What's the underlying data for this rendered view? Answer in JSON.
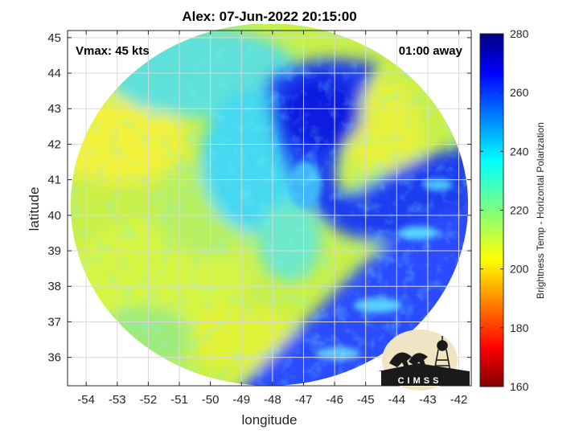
{
  "chart_data": {
    "type": "heatmap",
    "title": "Alex: 07-Jun-2022 20:15:00",
    "xlabel": "longitude",
    "ylabel": "latitude",
    "xlim": [
      -54.6,
      -41.6
    ],
    "ylim": [
      35.2,
      45.2
    ],
    "x_ticks": [
      -54,
      -53,
      -52,
      -51,
      -50,
      -49,
      -48,
      -47,
      -46,
      -45,
      -44,
      -43,
      -42
    ],
    "x_tick_labels": [
      "-54",
      "-53",
      "-52",
      "-51",
      "-50",
      "-49",
      "-48",
      "-47",
      "-46",
      "-45",
      "-44",
      "-43",
      "-42"
    ],
    "y_ticks": [
      36,
      37,
      38,
      39,
      40,
      41,
      42,
      43,
      44,
      45
    ],
    "y_tick_labels": [
      "36",
      "37",
      "38",
      "39",
      "40",
      "41",
      "42",
      "43",
      "44",
      "45"
    ],
    "grid": true,
    "annotations": {
      "vmax": "Vmax: 45 kts",
      "time_offset": "01:00 away"
    },
    "swath": {
      "center": [
        -48.1,
        40.3
      ],
      "radius_lon": 6.4,
      "radius_lat": 5.1
    },
    "field_description_values": {
      "background_temp": 218,
      "warm_band_temp": 262,
      "cold_core_temp": 268
    },
    "colorbar": {
      "label": "Brightness Temp - Horizontal Polarization",
      "range": [
        160,
        280
      ],
      "ticks": [
        160,
        180,
        200,
        220,
        240,
        260,
        280
      ],
      "tick_labels": [
        "160",
        "180",
        "200",
        "220",
        "240",
        "260",
        "280"
      ],
      "colormap": "jet"
    }
  },
  "logo": {
    "text": "CIMSS"
  },
  "colors": {
    "grid": "#d9d9d9",
    "axis": "#262626",
    "text": "#000000"
  }
}
